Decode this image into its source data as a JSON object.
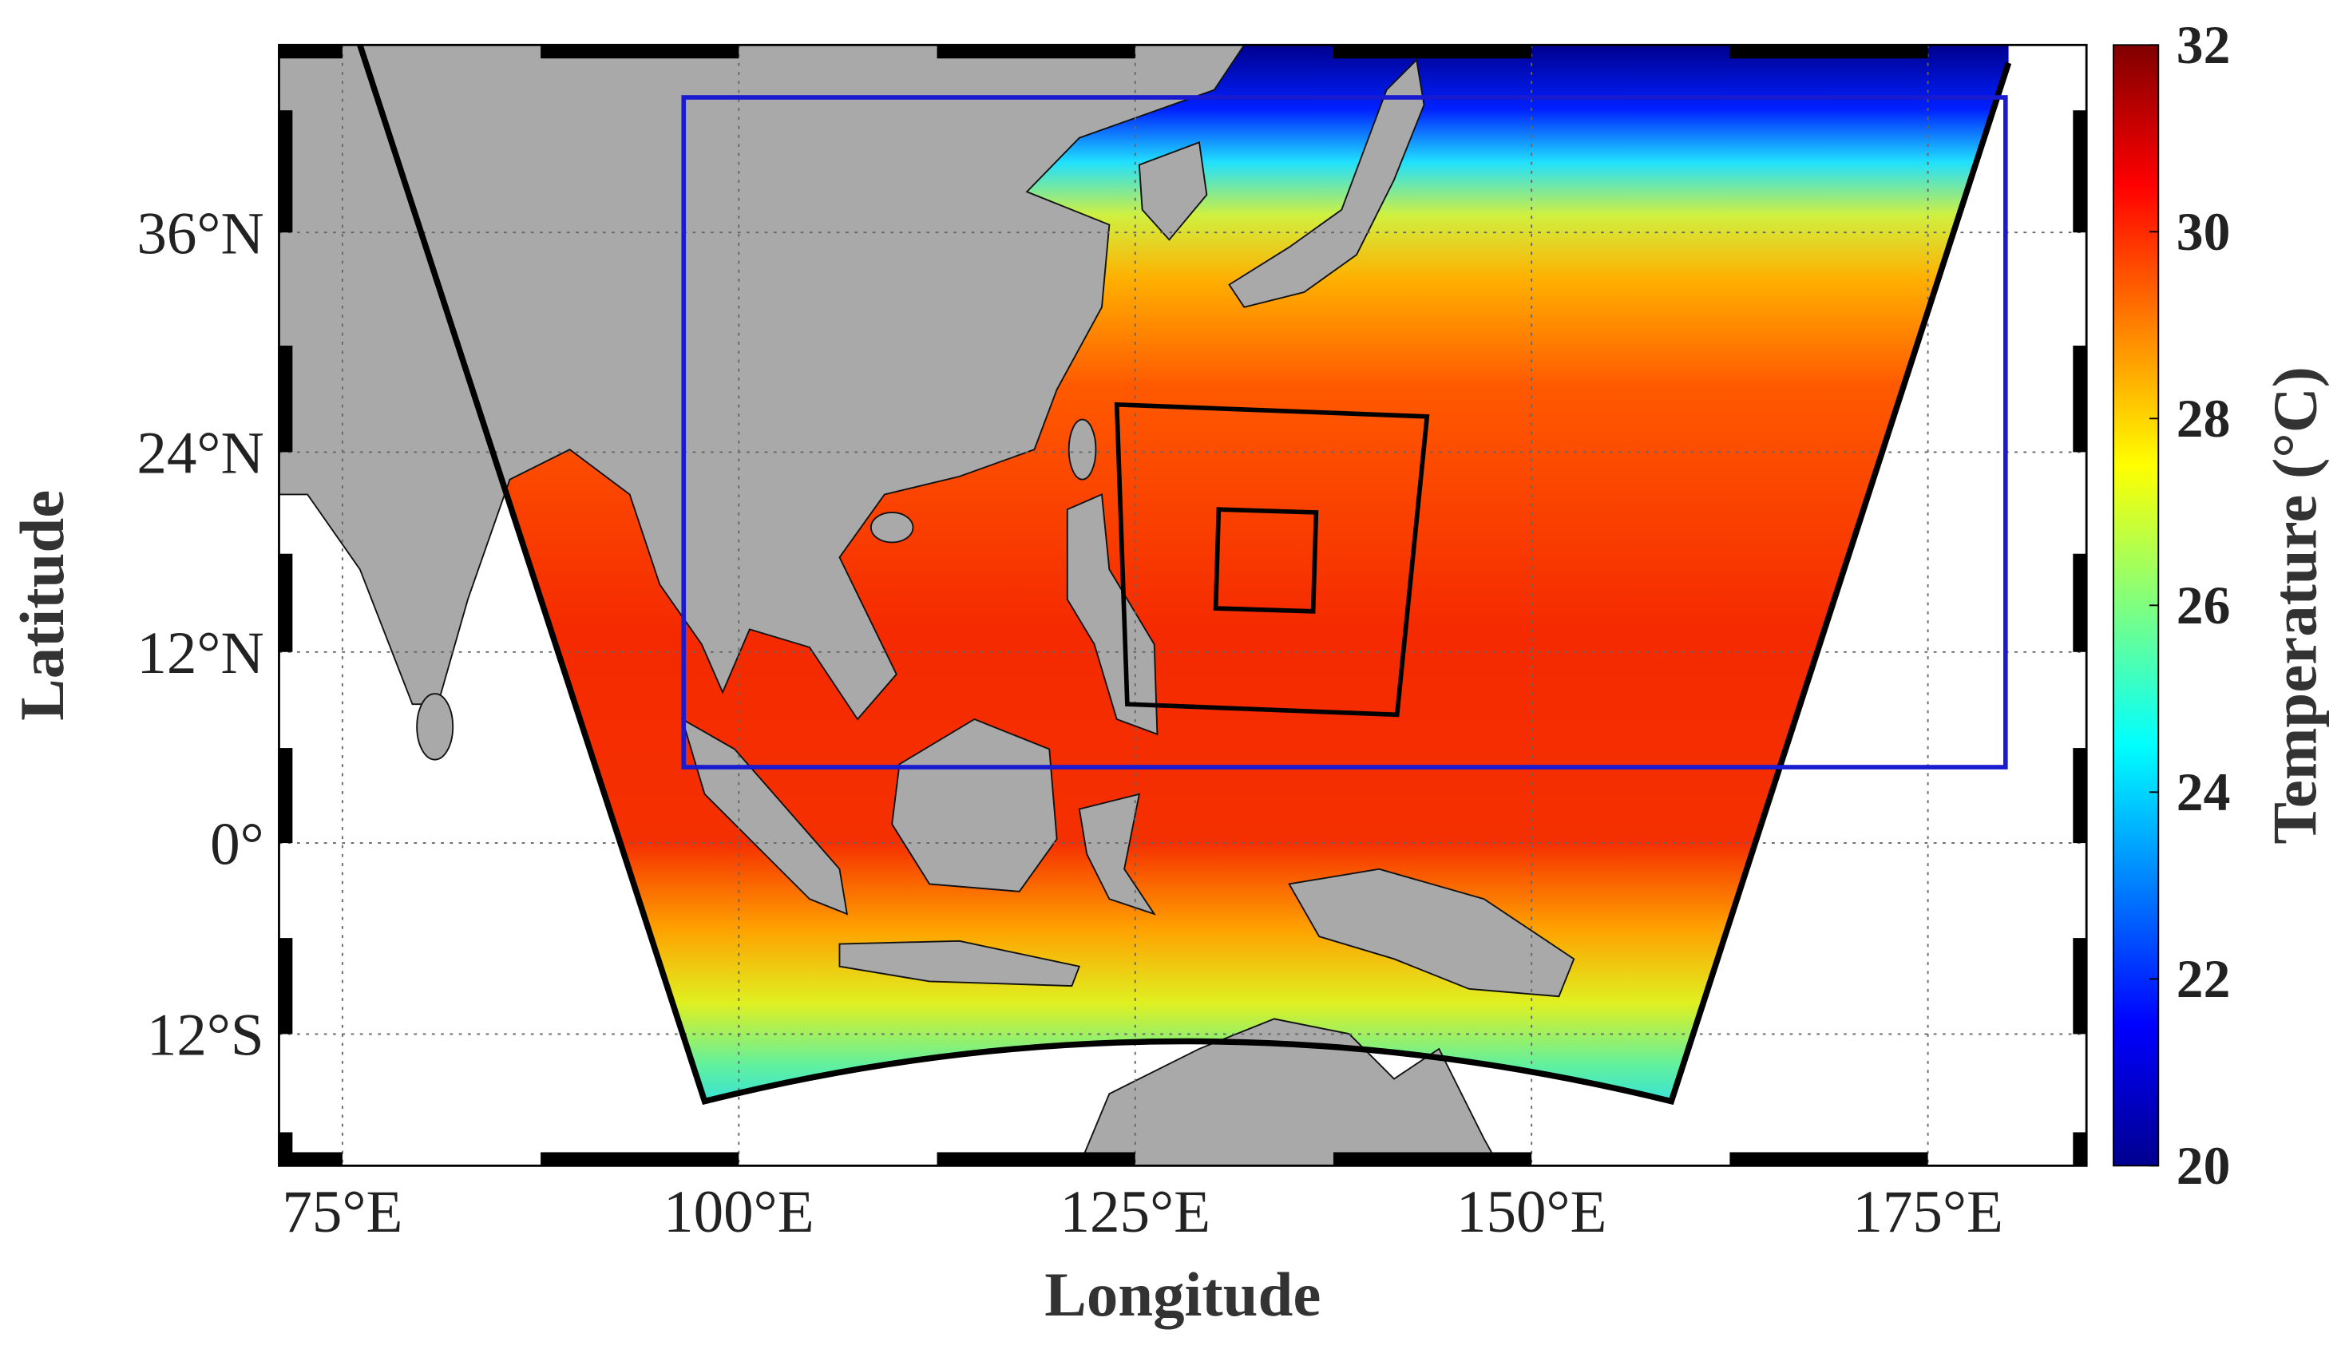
{
  "map": {
    "xlabel": "Longitude",
    "ylabel": "Latitude",
    "xlim": [
      71,
      185
    ],
    "ylim": [
      -20,
      45
    ],
    "xticks": [
      {
        "value": 75,
        "label": "75°E"
      },
      {
        "value": 100,
        "label": "100°E"
      },
      {
        "value": 125,
        "label": "125°E"
      },
      {
        "value": 150,
        "label": "150°E"
      },
      {
        "value": 175,
        "label": "175°E"
      }
    ],
    "yticks": [
      {
        "value": 36,
        "label": "36°N"
      },
      {
        "value": 24,
        "label": "24°N"
      },
      {
        "value": 12,
        "label": "12°N"
      },
      {
        "value": 0,
        "label": "0°"
      },
      {
        "value": -12,
        "label": "12°S"
      }
    ]
  },
  "colorbar": {
    "label": "Temperature (°C)",
    "lim": [
      20,
      32
    ],
    "ticks": [
      20,
      22,
      24,
      26,
      28,
      30,
      32
    ]
  }
}
